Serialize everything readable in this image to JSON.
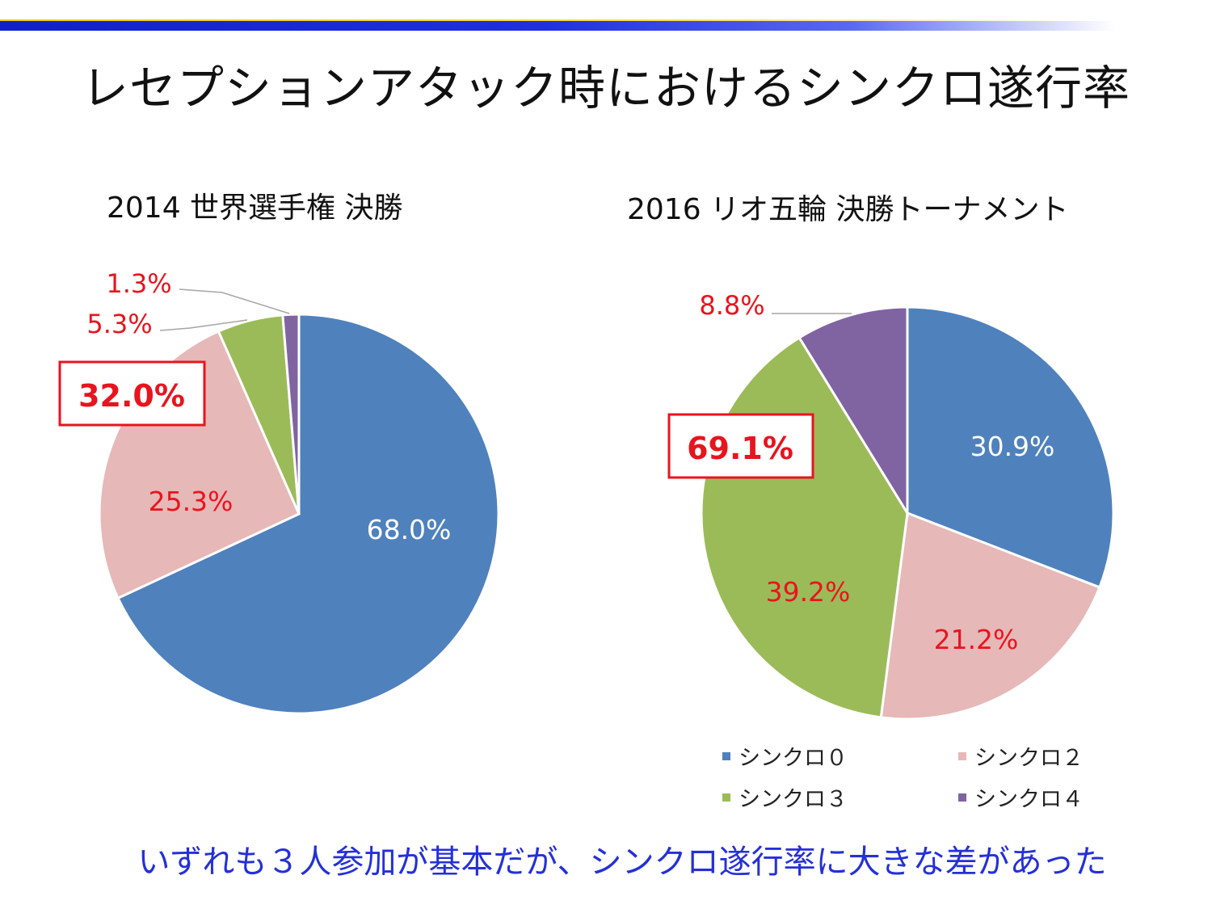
{
  "slide": {
    "title": "レセプションアタック時におけるシンクロ遂行率",
    "conclusion": "いずれも３人参加が基本だが、シンクロ遂行率に大きな差があった"
  },
  "colors": {
    "sync0": "#4f81bd",
    "sync2": "#e6b8b7",
    "sync3": "#9bbb59",
    "sync4": "#8064a2",
    "highlight": "#e8141e"
  },
  "chart_data": [
    {
      "type": "pie",
      "title": "2014 世界選手権 決勝",
      "slices": [
        {
          "name": "シンクロ０",
          "value": 68.0,
          "label": "68.0%"
        },
        {
          "name": "シンクロ２",
          "value": 25.3,
          "label": "25.3%"
        },
        {
          "name": "シンクロ３",
          "value": 5.3,
          "label": "5.3%"
        },
        {
          "name": "シンクロ４",
          "value": 1.3,
          "label": "1.3%"
        }
      ],
      "highlight_label": "32.0%"
    },
    {
      "type": "pie",
      "title": "2016 リオ五輪 決勝トーナメント",
      "slices": [
        {
          "name": "シンクロ０",
          "value": 30.9,
          "label": "30.9%"
        },
        {
          "name": "シンクロ２",
          "value": 21.2,
          "label": "21.2%"
        },
        {
          "name": "シンクロ３",
          "value": 39.2,
          "label": "39.2%"
        },
        {
          "name": "シンクロ４",
          "value": 8.8,
          "label": "8.8%"
        }
      ],
      "highlight_label": "69.1%",
      "legend": [
        "シンクロ０",
        "シンクロ２",
        "シンクロ３",
        "シンクロ４"
      ]
    }
  ]
}
